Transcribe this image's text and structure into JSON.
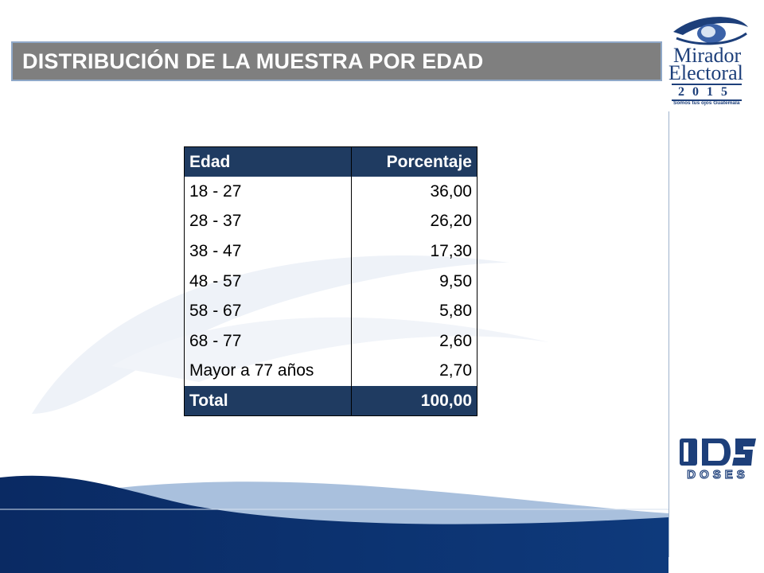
{
  "title": "DISTRIBUCIÓN DE LA MUESTRA POR EDAD",
  "logo_mirador": {
    "line1": "Mirador",
    "line2": "Electoral",
    "year": "2015",
    "tagline": "Somos tus ojos Guatemala",
    "icon": "eye-logo-icon"
  },
  "logo_doses": {
    "mark": "ids-mark-icon",
    "word": "DOSES"
  },
  "table": {
    "headers": [
      "Edad",
      "Porcentaje"
    ],
    "rows": [
      {
        "edad": "18 - 27",
        "pct": "36,00"
      },
      {
        "edad": "28 - 37",
        "pct": "26,20"
      },
      {
        "edad": "38 - 47",
        "pct": "17,30"
      },
      {
        "edad": "48 - 57",
        "pct": "9,50"
      },
      {
        "edad": "58 - 67",
        "pct": "5,80"
      },
      {
        "edad": "68 - 77",
        "pct": "2,60"
      },
      {
        "edad": "Mayor a 77 años",
        "pct": "2,70"
      }
    ],
    "total": {
      "edad": "Total",
      "pct": "100,00"
    }
  },
  "colors": {
    "title_bar": "#7f7f7f",
    "table_header": "#1f3b61",
    "brand_blue": "#1d3f7a",
    "footer_wave": "#0b2a5e"
  }
}
